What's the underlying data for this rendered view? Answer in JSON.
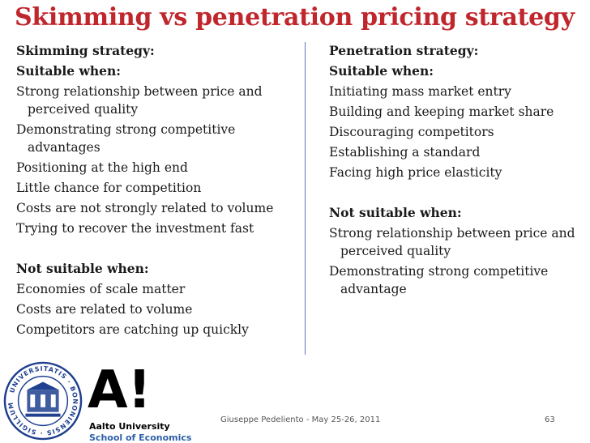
{
  "slide": {
    "title": "Skimming vs penetration pricing strategy",
    "page_number": "63"
  },
  "left": {
    "heading": "Skimming strategy:",
    "suitable_heading": "Suitable when:",
    "suitable_items": [
      "Strong relationship between price and perceived quality",
      "Demonstrating strong competitive advantages",
      "Positioning at the high end",
      "Little chance for competition",
      "Costs are not strongly related to volume",
      "Trying to recover the investment fast"
    ],
    "not_suitable_heading": "Not suitable when:",
    "not_suitable_items": [
      "Economies of scale matter",
      "Costs are related to volume",
      "Competitors are catching up quickly"
    ]
  },
  "right": {
    "heading": "Penetration strategy:",
    "suitable_heading": "Suitable when:",
    "suitable_items": [
      "Initiating mass market entry",
      "Building and keeping market share",
      "Discouraging competitors",
      "Establishing a standard",
      "Facing high price elasticity"
    ],
    "not_suitable_heading": "Not suitable when:",
    "not_suitable_items": [
      "Strong relationship between price and perceived quality",
      "Demonstrating strong competitive advantage"
    ]
  },
  "logos": {
    "seal_text": "UNIVERSITATIS · BONONIENSIS · SIGILLUM",
    "aalto_mark": "A!",
    "aalto_name": "Aalto University",
    "aalto_school": "School of Economics"
  },
  "footer": {
    "author": "Giuseppe Pedeliento - May 25-26, 2011"
  },
  "colors": {
    "title": "#c0272d",
    "divider": "#5b7bb5",
    "aalto_school": "#2d5fa8"
  }
}
